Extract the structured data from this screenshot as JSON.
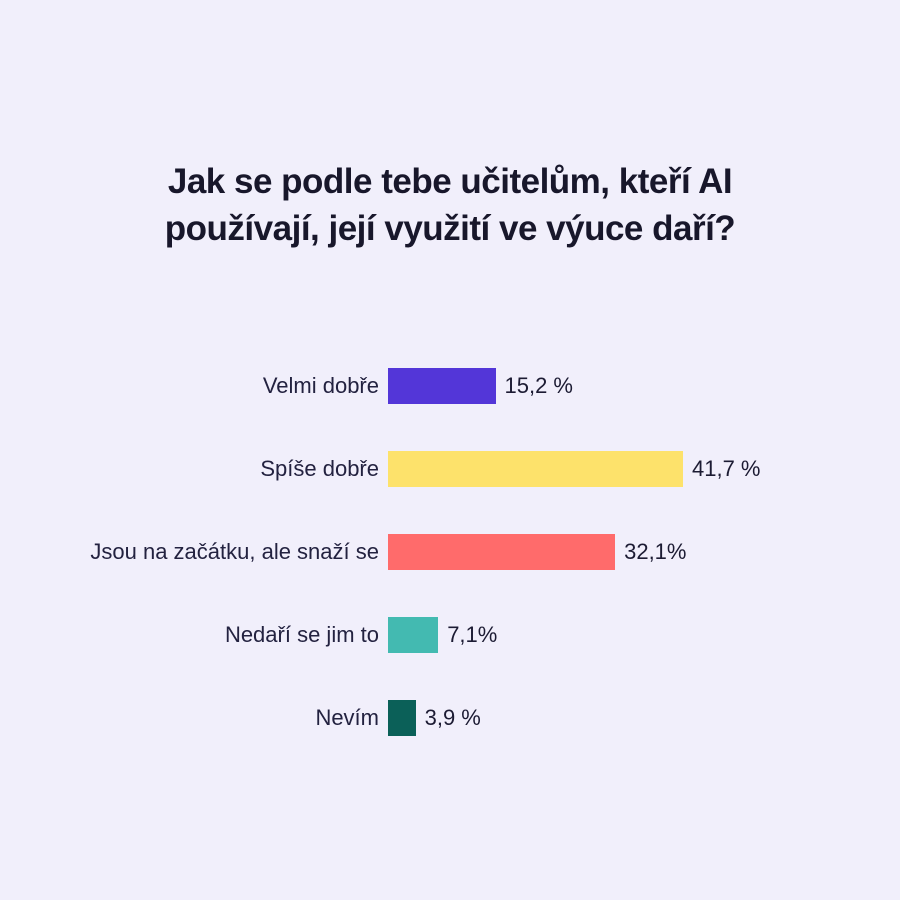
{
  "page": {
    "background_color": "#F1EFFB",
    "text_color": "#18172B"
  },
  "header": {
    "title": "Jak se podle tebe učitelům, kteří AI používají, její využití ve výuce daří?",
    "title_lines": [
      "Jak se podle tebe učitelům, kteří AI",
      "používají, její využití ve výuce daří?"
    ]
  },
  "chart_data": {
    "type": "bar",
    "orientation": "horizontal",
    "title": "Jak se podle tebe učitelům, kteří AI používají, její využití ve výuce daří?",
    "categories": [
      "Velmi dobře",
      "Spíše dobře",
      "Jsou na začátku, ale snaží se",
      "Nedaří se jim to",
      "Nevím"
    ],
    "values": [
      15.2,
      41.7,
      32.1,
      7.1,
      3.9
    ],
    "value_labels": [
      "15,2 %",
      "41,7 %",
      "32,1%",
      "7,1%",
      "3,9 %"
    ],
    "bar_colors": [
      "#5336D8",
      "#FDE26B",
      "#FF6B6B",
      "#43BAB1",
      "#0B6058"
    ],
    "xlabel": "",
    "ylabel": "",
    "xlim": [
      0,
      50
    ],
    "grid": false,
    "legend": "none",
    "unit": "%"
  }
}
